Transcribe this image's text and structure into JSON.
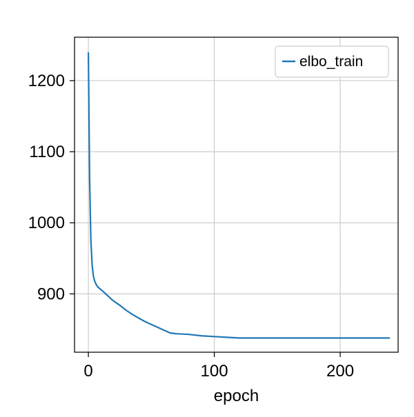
{
  "chart_data": {
    "type": "line",
    "title": "",
    "xlabel": "epoch",
    "ylabel": "",
    "xlim": [
      -11,
      246
    ],
    "ylim": [
      818,
      1261
    ],
    "xticks": [
      0,
      100,
      200
    ],
    "yticks": [
      900,
      1000,
      1100,
      1200
    ],
    "grid": true,
    "legend": {
      "placement": "top-right",
      "entries": [
        "elbo_train"
      ]
    },
    "colors": {
      "series": "#1f77b4",
      "grid": "#cccccc",
      "frame": "#000000"
    },
    "series": [
      {
        "name": "elbo_train",
        "x": [
          0,
          1,
          2,
          3,
          4,
          5,
          6,
          7,
          8,
          10,
          12,
          15,
          18,
          20,
          25,
          30,
          35,
          40,
          45,
          50,
          55,
          60,
          65,
          70,
          80,
          90,
          100,
          110,
          120,
          140,
          160,
          180,
          200,
          220,
          239
        ],
        "values": [
          1239,
          1060,
          975,
          940,
          925,
          918,
          914,
          911,
          909,
          906,
          903,
          898,
          893,
          890,
          884,
          877,
          871,
          866,
          861,
          857,
          853,
          849,
          845,
          844,
          843,
          841,
          840,
          839,
          838,
          838,
          838,
          838,
          838,
          838,
          838
        ]
      }
    ]
  }
}
